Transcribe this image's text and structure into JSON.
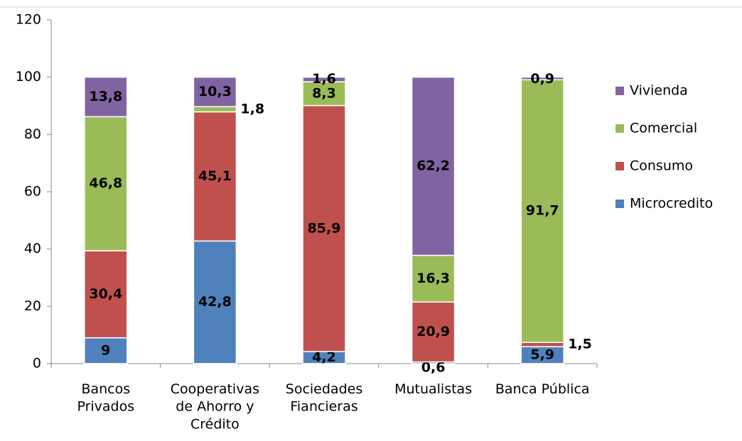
{
  "chart_data": {
    "type": "stacked_bar",
    "categories": [
      "Bancos Privados",
      "Cooperativas de Ahorro y Crédito",
      "Sociedades Fiancieras",
      "Mutualistas",
      "Banca Pública"
    ],
    "series": [
      {
        "name": "Microcredito",
        "color": "#4f81bd",
        "values": [
          9,
          42.8,
          4.2,
          0.6,
          5.9
        ],
        "value_labels": [
          "9",
          "42,8",
          "4,2",
          "0,6",
          "5,9"
        ]
      },
      {
        "name": "Consumo",
        "color": "#c0504d",
        "values": [
          30.4,
          45.1,
          85.9,
          20.9,
          1.5
        ],
        "value_labels": [
          "30,4",
          "45,1",
          "85,9",
          "20,9",
          "1,5"
        ]
      },
      {
        "name": "Comercial",
        "color": "#9bbb59",
        "values": [
          46.8,
          1.8,
          8.3,
          16.3,
          91.7
        ],
        "value_labels": [
          "46,8",
          "1,8",
          "8,3",
          "16,3",
          "91,7"
        ]
      },
      {
        "name": "Vivienda",
        "color": "#8064a2",
        "values": [
          13.8,
          10.3,
          1.6,
          62.2,
          0.9
        ],
        "value_labels": [
          "13,8",
          "10,3",
          "1,6",
          "62,2",
          "0,9"
        ]
      }
    ],
    "ylim": [
      0,
      120
    ],
    "yticks": [
      0,
      20,
      40,
      60,
      80,
      100,
      120
    ],
    "grid": false,
    "legend": "right"
  }
}
